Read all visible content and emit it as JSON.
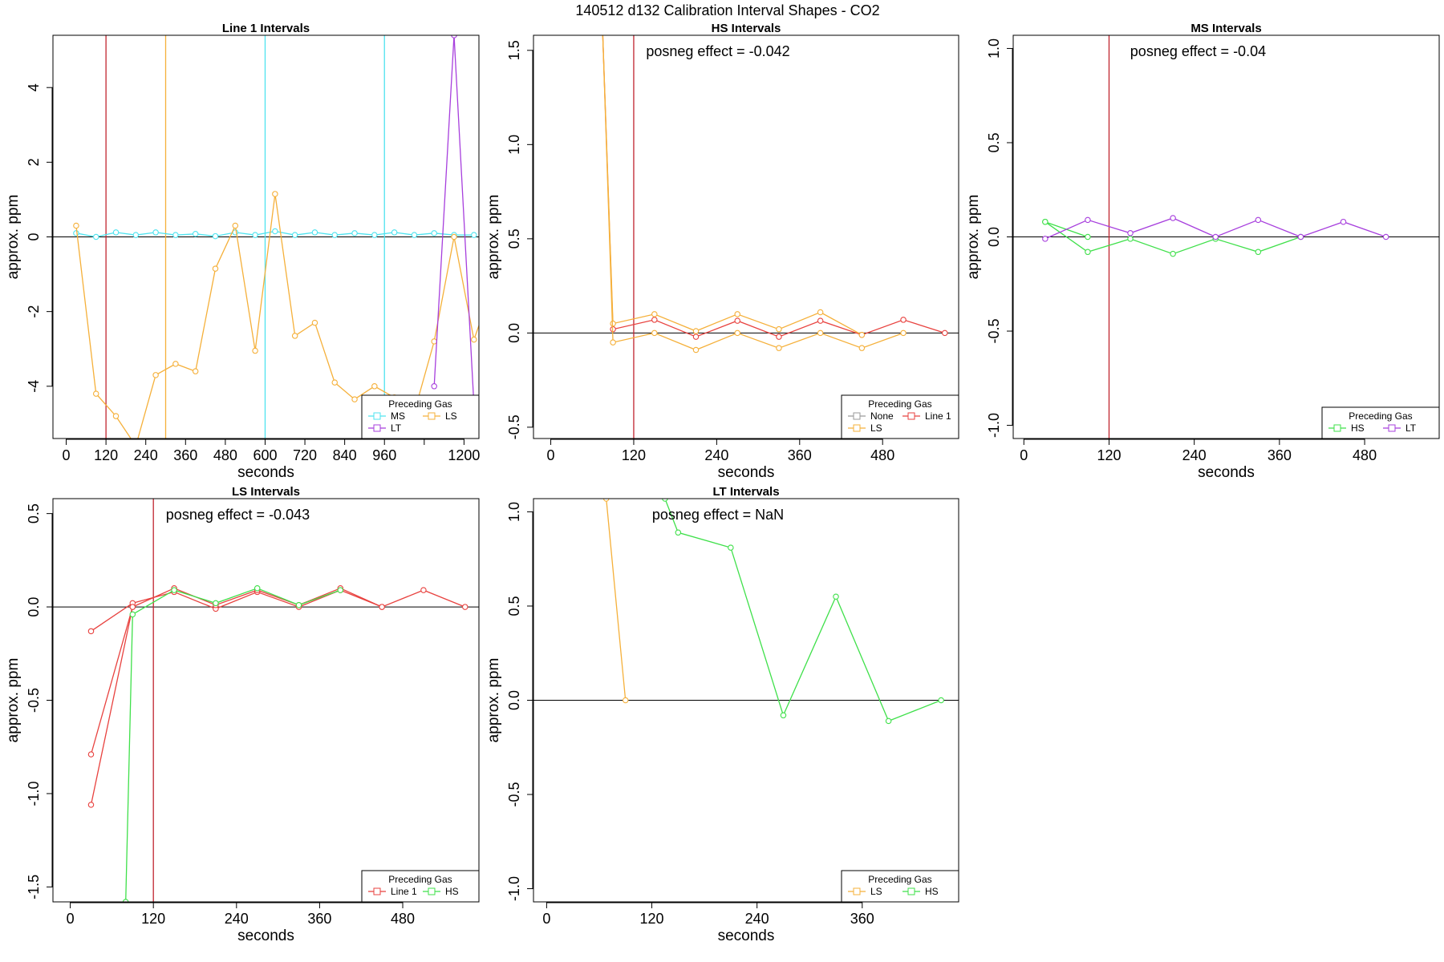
{
  "figure": {
    "title": "140512  d132   Calibration Interval Shapes - CO2"
  },
  "colors": {
    "MS": "#4fe3ef",
    "LS": "#f5b03a",
    "LT": "#a73fdd",
    "HS": "#3fe04a",
    "Line 1": "#e8423f",
    "None": "#9a9a9a",
    "vline_red": "#c0242f",
    "vline_orange": "#f5b03a",
    "vline_cyan": "#4fe3ef",
    "axis": "#000000"
  },
  "chart_data": [
    {
      "type": "line",
      "title": "Line 1 Intervals",
      "xlabel": "seconds",
      "ylabel": "approx. ppm",
      "xlim": [
        -40,
        1245
      ],
      "ylim": [
        -5.4,
        5.4
      ],
      "xticks": [
        0,
        120,
        240,
        360,
        480,
        600,
        720,
        840,
        960,
        1080,
        1200
      ],
      "xtick_labels": [
        "0",
        "120",
        "240",
        "360",
        "480",
        "600",
        "720",
        "840",
        "960",
        "",
        "1200"
      ],
      "yticks": [
        -4,
        -2,
        0,
        2,
        4
      ],
      "ytick_labels": [
        "-4",
        "-2",
        "0",
        "2",
        "4"
      ],
      "hline": 0,
      "vlines": [
        {
          "x": 120,
          "color": "vline_red"
        },
        {
          "x": 300,
          "color": "vline_orange"
        },
        {
          "x": 600,
          "color": "vline_cyan"
        },
        {
          "x": 960,
          "color": "vline_cyan"
        }
      ],
      "annotation": "",
      "legend": {
        "title": "Preceding Gas",
        "position": "bottom-right",
        "rows": [
          [
            "MS",
            "LS"
          ],
          [
            "LT"
          ]
        ]
      },
      "series": [
        {
          "name": "MS",
          "color": "MS",
          "x": [
            30,
            90,
            150,
            210,
            270,
            330,
            390,
            450,
            510,
            570,
            630,
            690,
            750,
            810,
            870,
            930,
            990,
            1050,
            1110,
            1170,
            1230
          ],
          "y": [
            0.1,
            0.0,
            0.12,
            0.05,
            0.12,
            0.05,
            0.08,
            0.02,
            0.12,
            0.05,
            0.15,
            0.05,
            0.12,
            0.05,
            0.1,
            0.05,
            0.12,
            0.05,
            0.1,
            0.05,
            0.05
          ]
        },
        {
          "name": "LS",
          "color": "LS",
          "x": [
            30,
            90,
            150,
            210,
            270,
            330,
            390,
            450,
            510,
            570,
            630,
            690,
            750,
            810,
            870,
            930,
            990,
            1050,
            1110,
            1170,
            1230,
            1260
          ],
          "y": [
            0.3,
            -4.2,
            -4.8,
            -5.6,
            -3.7,
            -3.4,
            -3.6,
            -0.85,
            0.3,
            -3.05,
            1.15,
            -2.65,
            -2.3,
            -3.9,
            -4.35,
            -4.0,
            -4.3,
            -4.7,
            -2.8,
            0.0,
            -2.75,
            -2.0
          ]
        },
        {
          "name": "LT",
          "color": "LT",
          "x": [
            1110,
            1170,
            1230
          ],
          "y": [
            -4.0,
            5.4,
            -4.5
          ]
        }
      ]
    },
    {
      "type": "line",
      "title": "HS Intervals",
      "xlabel": "seconds",
      "ylabel": "approx. ppm",
      "xlim": [
        -25,
        590
      ],
      "ylim": [
        -0.56,
        1.58
      ],
      "xticks": [
        0,
        120,
        240,
        360,
        480
      ],
      "xtick_labels": [
        "0",
        "120",
        "240",
        "360",
        "480"
      ],
      "yticks": [
        -0.5,
        0.0,
        0.5,
        1.0,
        1.5
      ],
      "ytick_labels": [
        "-0.5",
        "0.0",
        "0.5",
        "1.0",
        "1.5"
      ],
      "hline": 0,
      "vlines": [
        {
          "x": 120,
          "color": "vline_red"
        }
      ],
      "annotation": "posneg effect = -0.042",
      "legend": {
        "title": "Preceding Gas",
        "position": "bottom-right",
        "rows": [
          [
            "None",
            "Line 1"
          ],
          [
            "LS"
          ]
        ]
      },
      "series": [
        {
          "name": "Line 1",
          "color": "Line 1",
          "x": [
            75,
            90,
            150,
            210,
            270,
            330,
            390,
            450,
            510,
            570
          ],
          "y": [
            1.6,
            0.02,
            0.07,
            -0.02,
            0.065,
            -0.02,
            0.065,
            -0.01,
            0.07,
            0.0
          ]
        },
        {
          "name": "LS",
          "color": "LS",
          "x": [
            75,
            90,
            150,
            210,
            270,
            330,
            390,
            450
          ],
          "y": [
            1.6,
            0.05,
            0.1,
            0.01,
            0.1,
            0.02,
            0.11,
            -0.01
          ]
        },
        {
          "name": "LS",
          "color": "LS",
          "x": [
            75,
            90,
            150,
            210,
            270,
            330,
            390,
            450,
            510
          ],
          "y": [
            1.6,
            -0.05,
            0.0,
            -0.09,
            0.0,
            -0.08,
            0.0,
            -0.08,
            0.0
          ]
        }
      ]
    },
    {
      "type": "line",
      "title": "MS Intervals",
      "xlabel": "seconds",
      "ylabel": "approx. ppm",
      "xlim": [
        -15,
        585
      ],
      "ylim": [
        -1.07,
        1.07
      ],
      "xticks": [
        0,
        120,
        240,
        360,
        480
      ],
      "xtick_labels": [
        "0",
        "120",
        "240",
        "360",
        "480"
      ],
      "yticks": [
        -1.0,
        -0.5,
        0.0,
        0.5,
        1.0
      ],
      "ytick_labels": [
        "-1.0",
        "-0.5",
        "0.0",
        "0.5",
        "1.0"
      ],
      "hline": 0,
      "vlines": [
        {
          "x": 120,
          "color": "vline_red"
        }
      ],
      "annotation": "posneg effect = -0.04",
      "legend": {
        "title": "Preceding Gas",
        "position": "bottom-right",
        "rows": [
          [
            "HS",
            "LT"
          ]
        ]
      },
      "series": [
        {
          "name": "HS",
          "color": "HS",
          "x": [
            30,
            90,
            150,
            210,
            270,
            330,
            390
          ],
          "y": [
            0.08,
            -0.08,
            -0.01,
            -0.09,
            -0.01,
            -0.08,
            0.0
          ]
        },
        {
          "name": "HS",
          "color": "HS",
          "x": [
            30,
            90
          ],
          "y": [
            0.08,
            0.0
          ]
        },
        {
          "name": "LT",
          "color": "LT",
          "x": [
            30,
            90,
            150,
            210,
            270,
            330,
            390,
            450,
            510
          ],
          "y": [
            -0.01,
            0.09,
            0.02,
            0.1,
            0.0,
            0.09,
            0.0,
            0.08,
            0.0
          ]
        }
      ]
    },
    {
      "type": "line",
      "title": "LS Intervals",
      "xlabel": "seconds",
      "ylabel": "approx. ppm",
      "xlim": [
        -25,
        590
      ],
      "ylim": [
        -1.58,
        0.58
      ],
      "xticks": [
        0,
        120,
        240,
        360,
        480
      ],
      "xtick_labels": [
        "0",
        "120",
        "240",
        "360",
        "480"
      ],
      "yticks": [
        -1.5,
        -1.0,
        -0.5,
        0.0,
        0.5
      ],
      "ytick_labels": [
        "-1.5",
        "-1.0",
        "-0.5",
        "0.0",
        "0.5"
      ],
      "hline": 0,
      "vlines": [
        {
          "x": 120,
          "color": "vline_red"
        }
      ],
      "annotation": "posneg effect = -0.043",
      "legend": {
        "title": "Preceding Gas",
        "position": "bottom-right",
        "rows": [
          [
            "Line 1",
            "HS"
          ]
        ]
      },
      "series": [
        {
          "name": "Line 1",
          "color": "Line 1",
          "x": [
            30,
            90,
            150,
            210,
            270,
            330,
            390,
            450,
            510,
            570
          ],
          "y": [
            -0.13,
            0.02,
            0.08,
            -0.01,
            0.08,
            0.0,
            0.09,
            0.0,
            0.09,
            0.0
          ]
        },
        {
          "name": "Line 1",
          "color": "Line 1",
          "x": [
            30,
            90
          ],
          "y": [
            -0.79,
            0.0
          ]
        },
        {
          "name": "Line 1",
          "color": "Line 1",
          "x": [
            30,
            90,
            150,
            210,
            270,
            330,
            390,
            450
          ],
          "y": [
            -1.06,
            0.0,
            0.1,
            0.01,
            0.09,
            0.01,
            0.1,
            0.0
          ]
        },
        {
          "name": "HS",
          "color": "HS",
          "x": [
            80,
            90,
            150,
            210,
            270,
            330,
            390
          ],
          "y": [
            -1.58,
            -0.04,
            0.09,
            0.02,
            0.1,
            0.01,
            0.09
          ]
        }
      ]
    },
    {
      "type": "line",
      "title": "LT Intervals",
      "xlabel": "seconds",
      "ylabel": "approx. ppm",
      "xlim": [
        -15,
        470
      ],
      "ylim": [
        -1.07,
        1.07
      ],
      "xticks": [
        0,
        120,
        240,
        360
      ],
      "xtick_labels": [
        "0",
        "120",
        "240",
        "360"
      ],
      "yticks": [
        -1.0,
        -0.5,
        0.0,
        0.5,
        1.0
      ],
      "ytick_labels": [
        "-1.0",
        "-0.5",
        "0.0",
        "0.5",
        "1.0"
      ],
      "hline": 0,
      "vlines": [],
      "annotation": "posneg effect = NaN",
      "legend": {
        "title": "Preceding Gas",
        "position": "bottom-right",
        "rows": [
          [
            "LS",
            "HS"
          ]
        ]
      },
      "series": [
        {
          "name": "LS",
          "color": "LS",
          "x": [
            68,
            90
          ],
          "y": [
            1.07,
            0.0
          ]
        },
        {
          "name": "HS",
          "color": "HS",
          "x": [
            135,
            150,
            210,
            270,
            330,
            390,
            450
          ],
          "y": [
            1.07,
            0.89,
            0.81,
            -0.08,
            0.55,
            -0.11,
            0.0
          ]
        }
      ]
    }
  ]
}
